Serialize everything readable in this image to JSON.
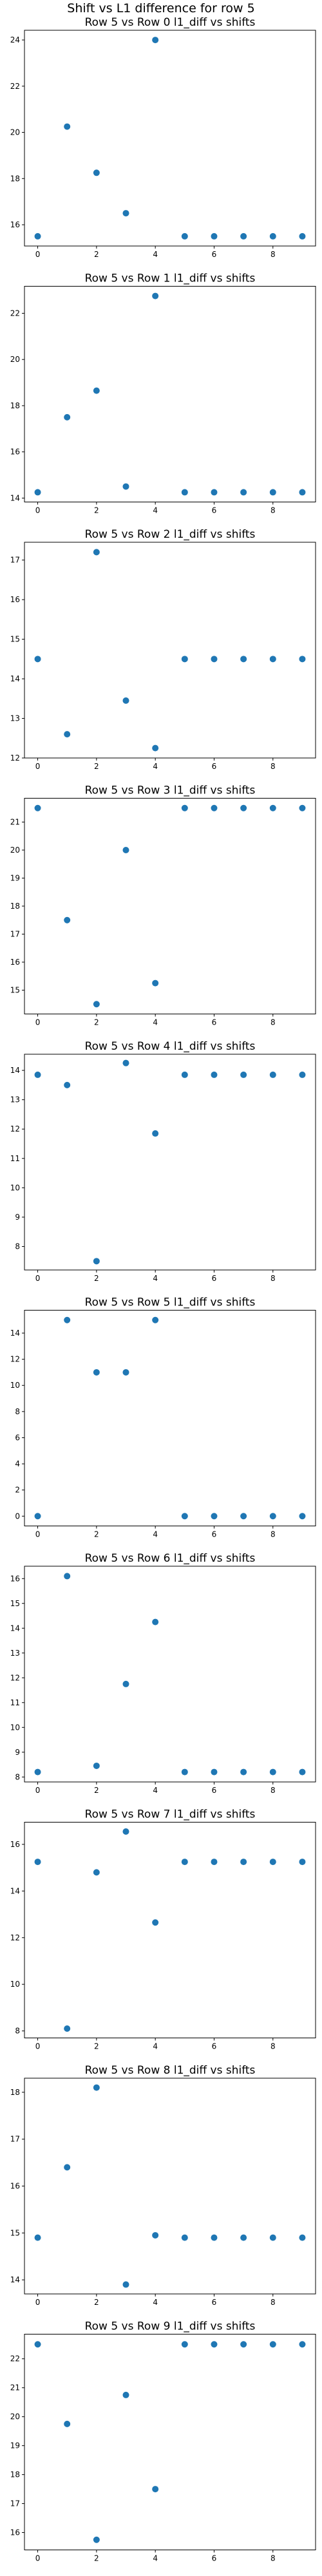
{
  "figure": {
    "suptitle": "Shift vs L1 difference for row 5"
  },
  "style": {
    "marker_color": "#1f77b4",
    "axis_color": "#000000"
  },
  "chart_data": [
    {
      "type": "scatter",
      "title": "Row 5 vs Row 0 l1_diff vs shifts",
      "xlabel": "",
      "ylabel": "",
      "x": [
        0,
        1,
        2,
        3,
        4,
        5,
        6,
        7,
        8,
        9
      ],
      "y": [
        15.5,
        20.25,
        18.25,
        16.5,
        24.0,
        15.5,
        15.5,
        15.5,
        15.5,
        15.5
      ],
      "ylim": [
        15.08,
        24.42
      ],
      "yticks": [
        16,
        18,
        20,
        22,
        24
      ],
      "xticks": [
        0,
        2,
        4,
        6,
        8
      ]
    },
    {
      "type": "scatter",
      "title": "Row 5 vs Row 1 l1_diff vs shifts",
      "xlabel": "",
      "ylabel": "",
      "x": [
        0,
        1,
        2,
        3,
        4,
        5,
        6,
        7,
        8,
        9
      ],
      "y": [
        14.25,
        17.5,
        18.65,
        14.5,
        22.75,
        14.25,
        14.25,
        14.25,
        14.25,
        14.25
      ],
      "ylim": [
        13.83,
        23.17
      ],
      "yticks": [
        14,
        16,
        18,
        20,
        22
      ],
      "xticks": [
        0,
        2,
        4,
        6,
        8
      ]
    },
    {
      "type": "scatter",
      "title": "Row 5 vs Row 2 l1_diff vs shifts",
      "xlabel": "",
      "ylabel": "",
      "x": [
        0,
        1,
        2,
        3,
        4,
        5,
        6,
        7,
        8,
        9
      ],
      "y": [
        14.5,
        12.6,
        17.2,
        13.45,
        12.25,
        14.5,
        14.5,
        14.5,
        14.5,
        14.5
      ],
      "ylim": [
        12.0,
        17.45
      ],
      "yticks": [
        12,
        13,
        14,
        15,
        16,
        17
      ],
      "xticks": [
        0,
        2,
        4,
        6,
        8
      ]
    },
    {
      "type": "scatter",
      "title": "Row 5 vs Row 3 l1_diff vs shifts",
      "xlabel": "",
      "ylabel": "",
      "x": [
        0,
        1,
        2,
        3,
        4,
        5,
        6,
        7,
        8,
        9
      ],
      "y": [
        21.5,
        17.5,
        14.5,
        20.0,
        15.25,
        21.5,
        21.5,
        21.5,
        21.5,
        21.5
      ],
      "ylim": [
        14.15,
        21.85
      ],
      "yticks": [
        15,
        16,
        17,
        18,
        19,
        20,
        21
      ],
      "xticks": [
        0,
        2,
        4,
        6,
        8
      ]
    },
    {
      "type": "scatter",
      "title": "Row 5 vs Row 4 l1_diff vs shifts",
      "xlabel": "",
      "ylabel": "",
      "x": [
        0,
        1,
        2,
        3,
        4,
        5,
        6,
        7,
        8,
        9
      ],
      "y": [
        13.85,
        13.5,
        7.5,
        14.25,
        11.85,
        13.85,
        13.85,
        13.85,
        13.85,
        13.85
      ],
      "ylim": [
        7.2,
        14.55
      ],
      "yticks": [
        8,
        9,
        10,
        11,
        12,
        13,
        14
      ],
      "xticks": [
        0,
        2,
        4,
        6,
        8
      ]
    },
    {
      "type": "scatter",
      "title": "Row 5 vs Row 5 l1_diff vs shifts",
      "xlabel": "",
      "ylabel": "",
      "x": [
        0,
        1,
        2,
        3,
        4,
        5,
        6,
        7,
        8,
        9
      ],
      "y": [
        0.0,
        15.0,
        11.0,
        11.0,
        15.0,
        0.0,
        0.0,
        0.0,
        0.0,
        0.0
      ],
      "ylim": [
        -0.75,
        15.75
      ],
      "yticks": [
        0,
        2,
        4,
        6,
        8,
        10,
        12,
        14
      ],
      "xticks": [
        0,
        2,
        4,
        6,
        8
      ]
    },
    {
      "type": "scatter",
      "title": "Row 5 vs Row 6 l1_diff vs shifts",
      "xlabel": "",
      "ylabel": "",
      "x": [
        0,
        1,
        2,
        3,
        4,
        5,
        6,
        7,
        8,
        9
      ],
      "y": [
        8.2,
        16.1,
        8.45,
        11.75,
        14.25,
        8.2,
        8.2,
        8.2,
        8.2,
        8.2
      ],
      "ylim": [
        7.8,
        16.5
      ],
      "yticks": [
        8,
        9,
        10,
        11,
        12,
        13,
        14,
        15,
        16
      ],
      "xticks": [
        0,
        2,
        4,
        6,
        8
      ]
    },
    {
      "type": "scatter",
      "title": "Row 5 vs Row 7 l1_diff vs shifts",
      "xlabel": "",
      "ylabel": "",
      "x": [
        0,
        1,
        2,
        3,
        4,
        5,
        6,
        7,
        8,
        9
      ],
      "y": [
        15.25,
        8.1,
        14.8,
        16.55,
        12.65,
        15.25,
        15.25,
        15.25,
        15.25,
        15.25
      ],
      "ylim": [
        7.7,
        16.95
      ],
      "yticks": [
        8,
        10,
        12,
        14,
        16
      ],
      "xticks": [
        0,
        2,
        4,
        6,
        8
      ]
    },
    {
      "type": "scatter",
      "title": "Row 5 vs Row 8 l1_diff vs shifts",
      "xlabel": "",
      "ylabel": "",
      "x": [
        0,
        1,
        2,
        3,
        4,
        5,
        6,
        7,
        8,
        9
      ],
      "y": [
        14.9,
        16.4,
        18.1,
        13.9,
        14.95,
        14.9,
        14.9,
        14.9,
        14.9,
        14.9
      ],
      "ylim": [
        13.7,
        18.3
      ],
      "yticks": [
        14,
        15,
        16,
        17,
        18
      ],
      "xticks": [
        0,
        2,
        4,
        6,
        8
      ]
    },
    {
      "type": "scatter",
      "title": "Row 5 vs Row 9 l1_diff vs shifts",
      "xlabel": "",
      "ylabel": "",
      "x": [
        0,
        1,
        2,
        3,
        4,
        5,
        6,
        7,
        8,
        9
      ],
      "y": [
        22.5,
        19.75,
        15.75,
        20.75,
        17.5,
        22.5,
        22.5,
        22.5,
        22.5,
        22.5
      ],
      "ylim": [
        15.4,
        22.85
      ],
      "yticks": [
        16,
        17,
        18,
        19,
        20,
        21,
        22
      ],
      "xticks": [
        0,
        2,
        4,
        6,
        8
      ]
    }
  ]
}
